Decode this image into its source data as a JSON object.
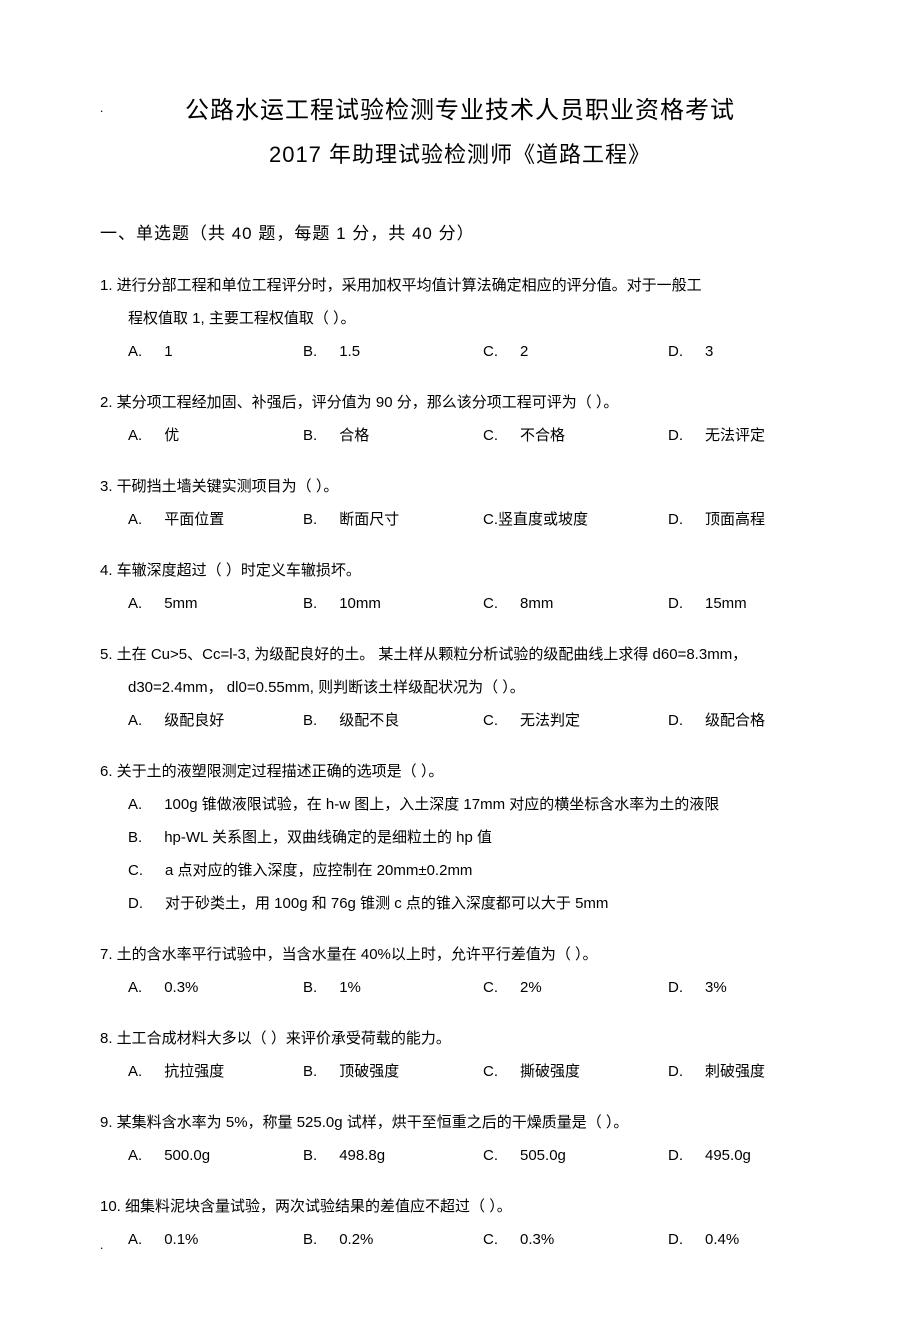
{
  "markers": {
    "dot": "."
  },
  "titles": {
    "main": "公路水运工程试验检测专业技术人员职业资格考试",
    "sub": "2017 年助理试验检测师《道路工程》"
  },
  "section": {
    "header": "一、单选题（共  40 题，每题 1 分，共 40 分）"
  },
  "q1": {
    "line1": "1.  进行分部工程和单位工程评分时，采用加权平均值计算法确定相应的评分值。对于一般工",
    "line2": "程权值取  1, 主要工程权值取（        ）。",
    "a": "1",
    "b": "1.5",
    "c": "2",
    "d": "3"
  },
  "q2": {
    "line1": "2. 某分项工程经加固、补强后，评分值为      90 分，那么该分项工程可评为（        ）。",
    "a": "优",
    "b": "合格",
    "c": "不合格",
    "d": "无法评定"
  },
  "q3": {
    "line1": "3.  干砌挡土墙关键实测项目为（         ）。",
    "a": "平面位置",
    "b": "断面尺寸",
    "c": "C.竖直度或坡度",
    "d": "顶面高程"
  },
  "q4": {
    "line1": "4. 车辙深度超过（        ）时定义车辙损坏。",
    "a": "5mm",
    "b": "10mm",
    "c": "8mm",
    "d": "15mm"
  },
  "q5": {
    "line1": "5.  土在 Cu>5、Cc=l-3, 为级配良好的土。 某土样从颗粒分析试验的级配曲线上求得     d60=8.3mm，",
    "line2": "d30=2.4mm， dl0=0.55mm, 则判断该土样级配状况为（         ）。",
    "a": "级配良好",
    "b": "级配不良",
    "c": "无法判定",
    "d": "级配合格"
  },
  "q6": {
    "line1": "6.  关于土的液塑限测定过程描述正确的选项是（            ）。",
    "a": "100g 锥做液限试验，在  h-w 图上，入土深度  17mm 对应的横坐标含水率为土的液限",
    "b": "hp-WL 关系图上，双曲线确定的是细粒土的      hp 值",
    "c": "a 点对应的锥入深度，应控制在      20mm±0.2mm",
    "d": "对于砂类土，用   100g 和 76g 锥测 c 点的锥入深度都可以大于      5mm"
  },
  "q7": {
    "line1": "7.  土的含水率平行试验中，当含水量在      40%以上时，允许平行差值为（        ）。",
    "a": "0.3%",
    "b": "1%",
    "c": "2%",
    "d": "3%"
  },
  "q8": {
    "line1": "8.  土工合成材料大多以（        ）来评价承受荷载的能力。",
    "a": "抗拉强度",
    "b": "顶破强度",
    "c": "撕破强度",
    "d": "刺破强度"
  },
  "q9": {
    "line1": "9.  某集料含水率为  5%，称量 525.0g 试样，烘干至恒重之后的干燥质量是（           ）。",
    "a": "500.0g",
    "b": "498.8g",
    "c": "505.0g",
    "d": "495.0g"
  },
  "q10": {
    "line1": "10.   细集料泥块含量试验，两次试验结果的差值应不超过（             ）。",
    "a": "0.1%",
    "b": "0.2%",
    "c": "0.3%",
    "d": "0.4%"
  },
  "labels": {
    "a": "A.",
    "b": "B.",
    "c": "C.",
    "d": "D."
  }
}
